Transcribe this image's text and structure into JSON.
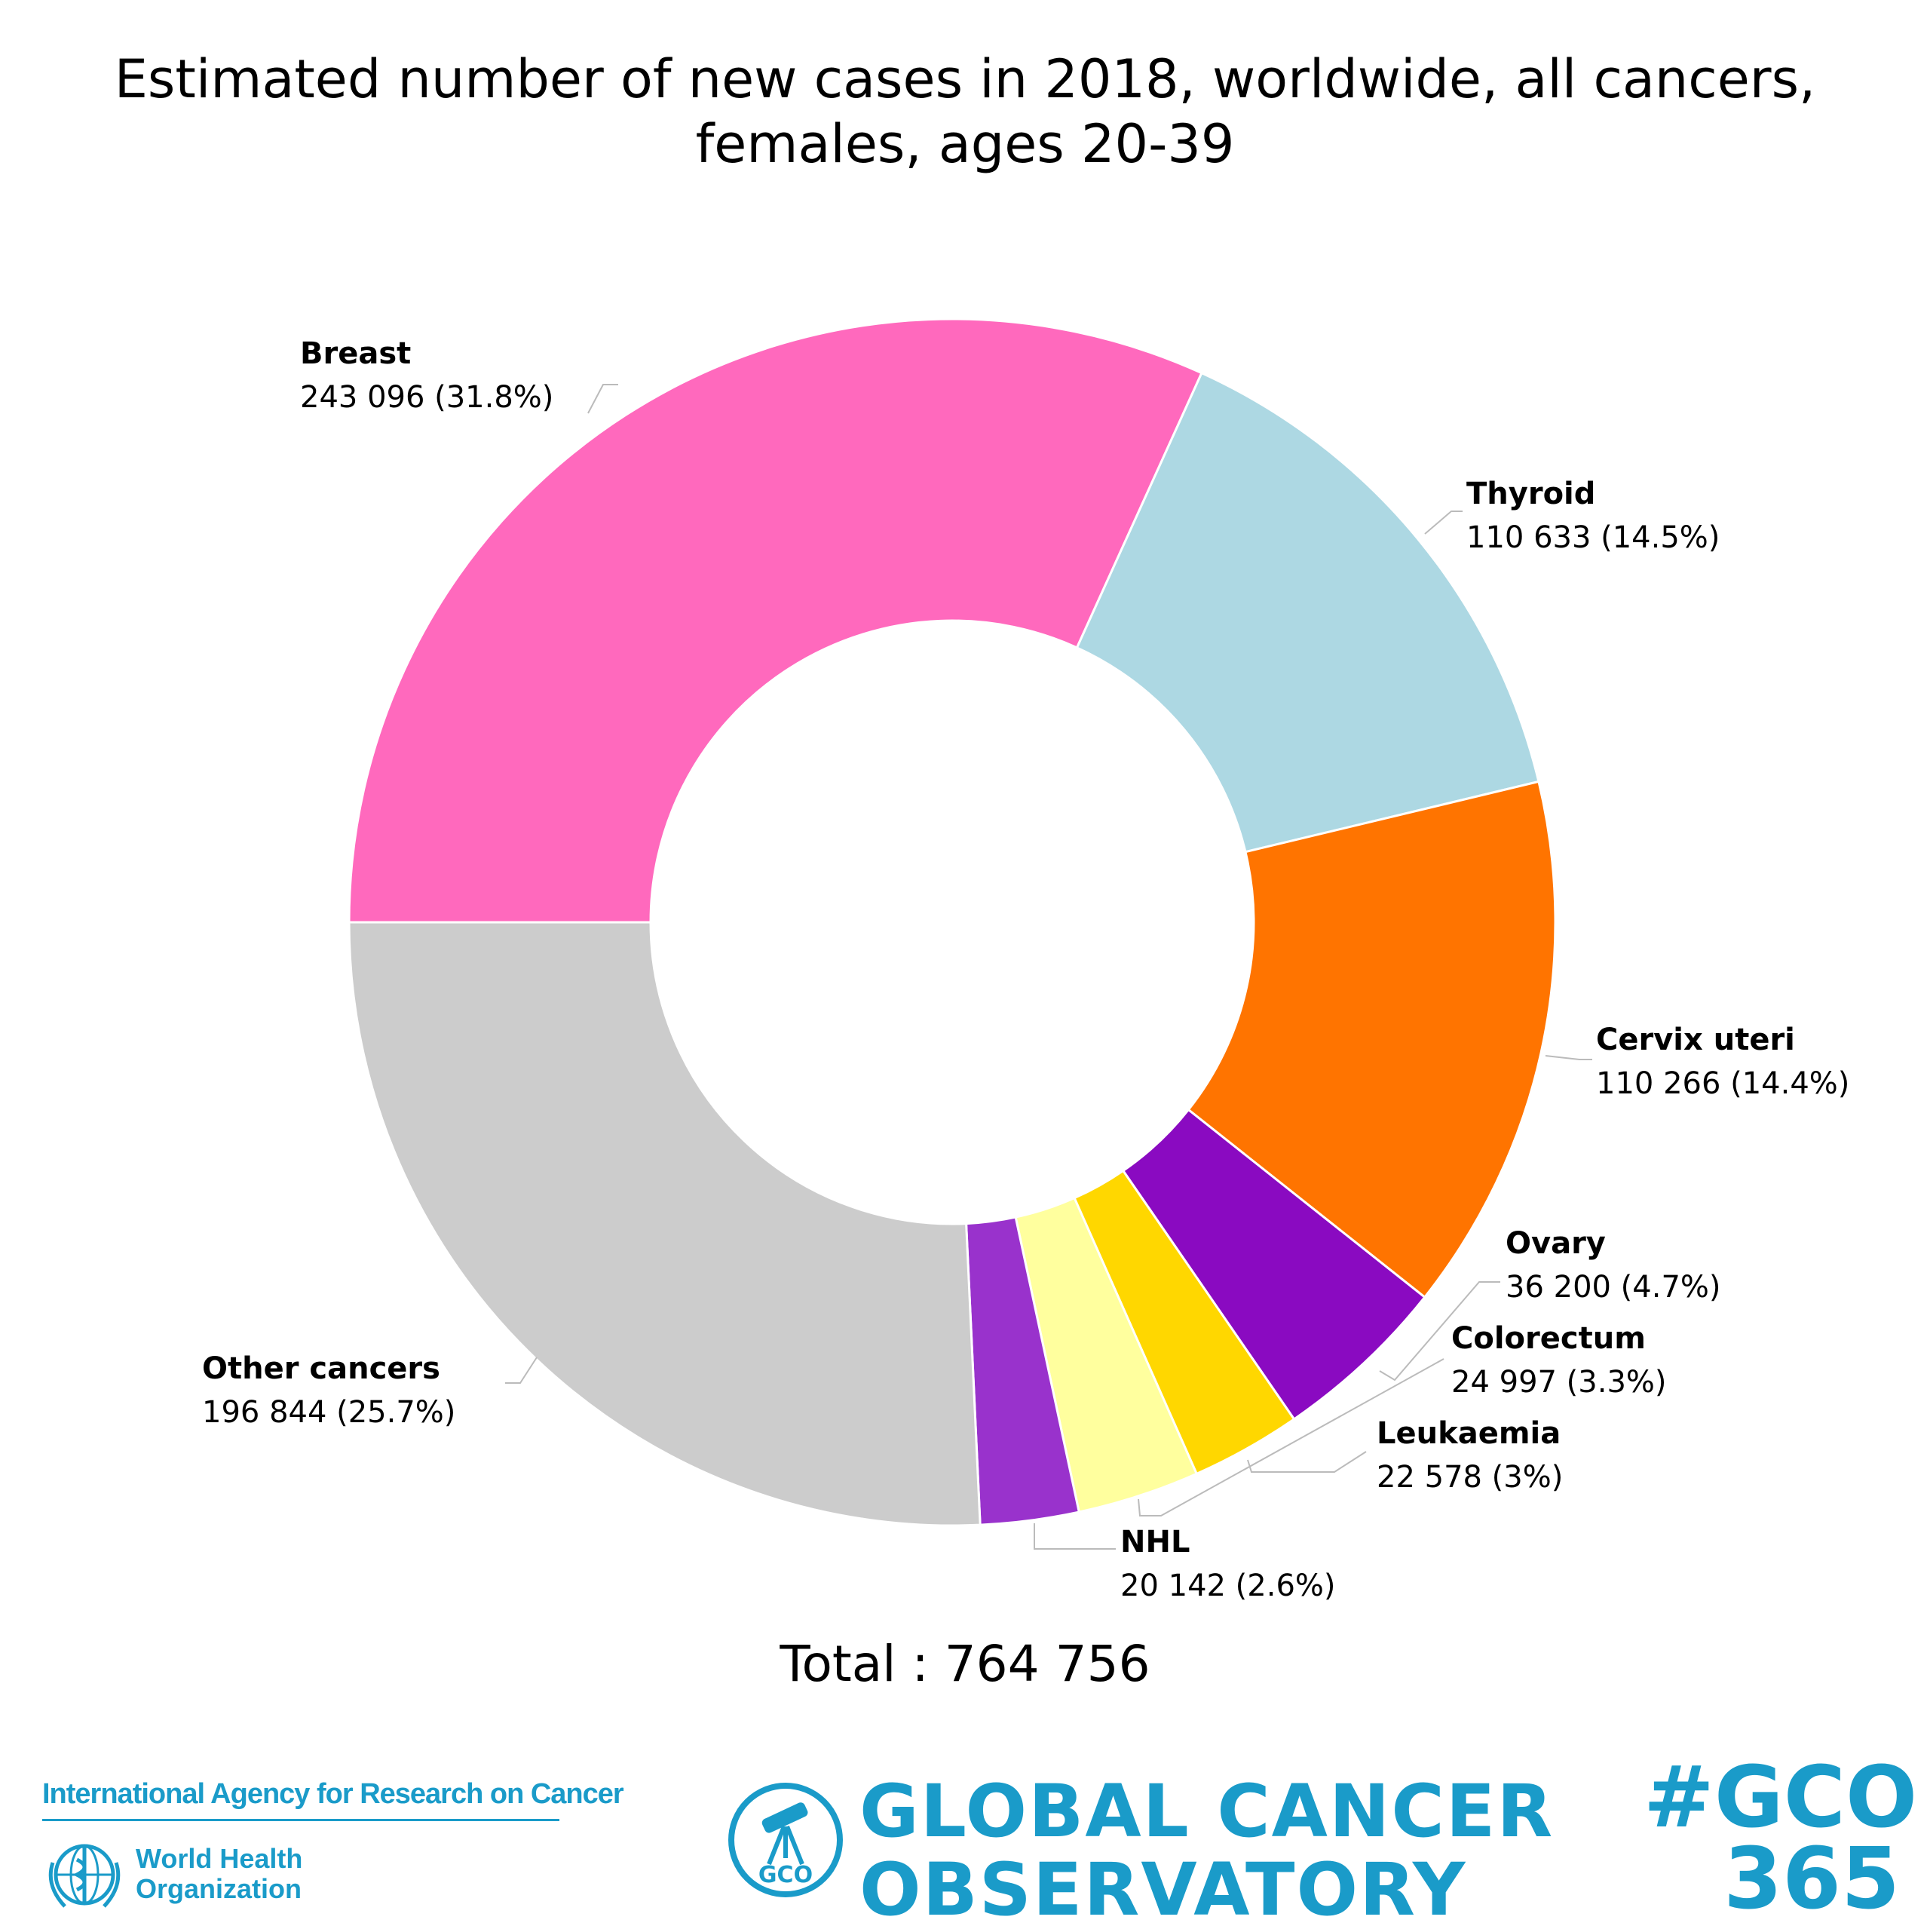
{
  "title_lines": [
    "Estimated number of new cases in 2018, worldwide, all cancers,",
    "females, ages 20-39"
  ],
  "total_text": "Total : 764 756",
  "chart_data": {
    "type": "pie",
    "donut": true,
    "title": "Estimated number of new cases in 2018, worldwide, all cancers, females, ages 20-39",
    "total": 764756,
    "slices": [
      {
        "label": "Breast",
        "value": 243096,
        "text": "243 096 (31.8%)",
        "color": "#ff69bd"
      },
      {
        "label": "Thyroid",
        "value": 110633,
        "text": "110 633 (14.5%)",
        "color": "#add8e3"
      },
      {
        "label": "Cervix uteri",
        "value": 110266,
        "text": "110 266 (14.4%)",
        "color": "#ff7400"
      },
      {
        "label": "Ovary",
        "value": 36200,
        "text": "36 200 (4.7%)",
        "color": "#8a0ac1"
      },
      {
        "label": "Leukaemia",
        "value": 22578,
        "text": "22 578 (3%)",
        "color": "#ffd700"
      },
      {
        "label": "Colorectum",
        "value": 24997,
        "text": "24 997 (3.3%)",
        "color": "#ffff9e"
      },
      {
        "label": "NHL",
        "value": 20142,
        "text": "20 142 (2.6%)",
        "color": "#9932cc"
      },
      {
        "label": "Other cancers",
        "value": 196844,
        "text": "196 844 (25.7%)",
        "color": "#cccccc"
      }
    ]
  },
  "footer": {
    "iarc": "International Agency for Research on Cancer",
    "who_lines": [
      "World Health",
      "Organization"
    ],
    "gco_lines": [
      "GLOBAL CANCER",
      "OBSERVATORY"
    ],
    "gco_badge": "GCO",
    "hashtag_lines": [
      "#GCO",
      "365"
    ]
  },
  "brand_color": "#1a9bc9"
}
